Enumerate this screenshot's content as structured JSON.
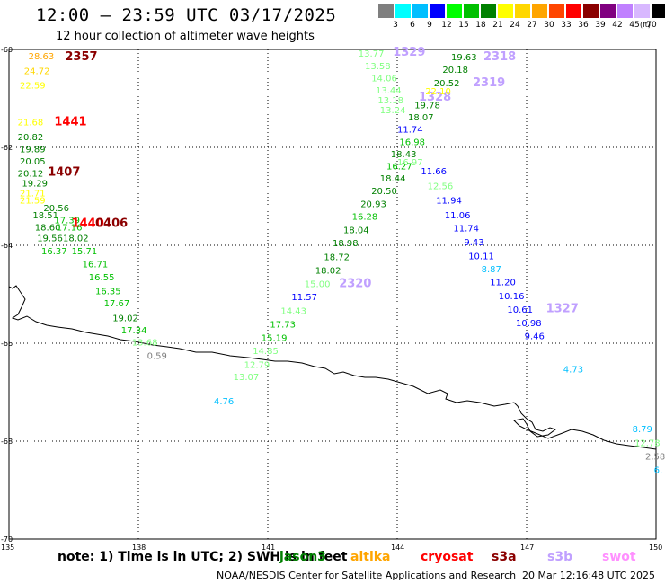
{
  "title": "12:00 — 23:59 UTC 03/17/2025",
  "subtitle": "12 hour collection of altimeter wave heights",
  "legend": {
    "unit": "(ft)",
    "ticks": [
      "3",
      "6",
      "9",
      "12",
      "15",
      "18",
      "21",
      "24",
      "27",
      "30",
      "33",
      "36",
      "39",
      "42",
      "45",
      "70"
    ],
    "colors": [
      "#7f7f7f",
      "#00ffff",
      "#00bfff",
      "#0000ff",
      "#00ff00",
      "#00c000",
      "#008000",
      "#ffff00",
      "#ffd700",
      "#ffa500",
      "#ff4500",
      "#ff0000",
      "#8b0000",
      "#800080",
      "#c080ff",
      "#d8b8ff",
      "#000000"
    ]
  },
  "axes": {
    "lat_labels": [
      "-60",
      "-62",
      "-64",
      "-66",
      "-68",
      "-70"
    ],
    "lon_labels": [
      "135",
      "138",
      "141",
      "144",
      "147",
      "150"
    ]
  },
  "note": "note: 1) Time is in UTC; 2) SWH is in feet",
  "satellites": [
    {
      "name": "jason3",
      "color": "#008000"
    },
    {
      "name": "altika",
      "color": "#ffa500"
    },
    {
      "name": "cryosat",
      "color": "#ff0000"
    },
    {
      "name": "s3a",
      "color": "#8b0000"
    },
    {
      "name": "s3b",
      "color": "#c0a0ff"
    },
    {
      "name": "swot",
      "color": "#ff90ff"
    }
  ],
  "credit": "NOAA/NESDIS Center for Satellite Applications and Research",
  "timestamp": "20 Mar 12:16:48 UTC 2025",
  "labels": [
    {
      "t": "28.63",
      "lon": 135.45,
      "lat": -60.2,
      "c": "#ffa500"
    },
    {
      "t": "2357",
      "lon": 136.3,
      "lat": -60.22,
      "c": "#8b0000",
      "big": true
    },
    {
      "t": "24.72",
      "lon": 135.35,
      "lat": -60.5,
      "c": "#ffd700"
    },
    {
      "t": "22.59",
      "lon": 135.25,
      "lat": -60.8,
      "c": "#ffff00"
    },
    {
      "t": "21.68",
      "lon": 135.2,
      "lat": -61.55,
      "c": "#ffff00"
    },
    {
      "t": "1441",
      "lon": 136.05,
      "lat": -61.55,
      "c": "#ff0000",
      "big": true
    },
    {
      "t": "20.82",
      "lon": 135.2,
      "lat": -61.85,
      "c": "#008000"
    },
    {
      "t": "19.89",
      "lon": 135.25,
      "lat": -62.1,
      "c": "#008000"
    },
    {
      "t": "20.05",
      "lon": 135.25,
      "lat": -62.35,
      "c": "#008000"
    },
    {
      "t": "20.12",
      "lon": 135.2,
      "lat": -62.6,
      "c": "#008000"
    },
    {
      "t": "1407",
      "lon": 135.9,
      "lat": -62.58,
      "c": "#8b0000",
      "big": true
    },
    {
      "t": "19.29",
      "lon": 135.3,
      "lat": -62.8,
      "c": "#008000"
    },
    {
      "t": "21.71",
      "lon": 135.25,
      "lat": -63.0,
      "c": "#ffff00"
    },
    {
      "t": "21.59",
      "lon": 135.25,
      "lat": -63.15,
      "c": "#ffff00"
    },
    {
      "t": "20.56",
      "lon": 135.8,
      "lat": -63.3,
      "c": "#008000"
    },
    {
      "t": "18.51",
      "lon": 135.55,
      "lat": -63.45,
      "c": "#008000"
    },
    {
      "t": "17.39",
      "lon": 136.05,
      "lat": -63.55,
      "c": "#00c000"
    },
    {
      "t": "18.60",
      "lon": 135.6,
      "lat": -63.7,
      "c": "#008000"
    },
    {
      "t": "17.16",
      "lon": 136.1,
      "lat": -63.7,
      "c": "#00c000"
    },
    {
      "t": "1440",
      "lon": 136.45,
      "lat": -63.62,
      "c": "#ff0000",
      "big": true
    },
    {
      "t": "0406",
      "lon": 137.0,
      "lat": -63.62,
      "c": "#8b0000",
      "big": true
    },
    {
      "t": "19.56",
      "lon": 135.65,
      "lat": -63.92,
      "c": "#008000"
    },
    {
      "t": "18.02",
      "lon": 136.25,
      "lat": -63.92,
      "c": "#008000"
    },
    {
      "t": "16.37",
      "lon": 135.75,
      "lat": -64.18,
      "c": "#00c000"
    },
    {
      "t": "15.71",
      "lon": 136.45,
      "lat": -64.18,
      "c": "#00c000"
    },
    {
      "t": "16.71",
      "lon": 136.7,
      "lat": -64.45,
      "c": "#00c000"
    },
    {
      "t": "16.55",
      "lon": 136.85,
      "lat": -64.72,
      "c": "#00c000"
    },
    {
      "t": "16.35",
      "lon": 137.0,
      "lat": -65.0,
      "c": "#00c000"
    },
    {
      "t": "17.67",
      "lon": 137.2,
      "lat": -65.25,
      "c": "#00c000"
    },
    {
      "t": "19.02",
      "lon": 137.4,
      "lat": -65.55,
      "c": "#008000"
    },
    {
      "t": "17.34",
      "lon": 137.6,
      "lat": -65.8,
      "c": "#00c000"
    },
    {
      "t": "13.68",
      "lon": 137.85,
      "lat": -66.05,
      "c": "#80ff80"
    },
    {
      "t": "0.59",
      "lon": 138.2,
      "lat": -66.32,
      "c": "#7f7f7f"
    },
    {
      "t": "4.76",
      "lon": 139.75,
      "lat": -67.25,
      "c": "#00bfff"
    },
    {
      "t": "13.77",
      "lon": 143.1,
      "lat": -60.15,
      "c": "#80ff80"
    },
    {
      "t": "1329",
      "lon": 143.9,
      "lat": -60.13,
      "c": "#c0a0ff",
      "big": true
    },
    {
      "t": "13.58",
      "lon": 143.25,
      "lat": -60.4,
      "c": "#80ff80"
    },
    {
      "t": "14.06",
      "lon": 143.4,
      "lat": -60.65,
      "c": "#80ff80"
    },
    {
      "t": "13.44",
      "lon": 143.5,
      "lat": -60.9,
      "c": "#80ff80"
    },
    {
      "t": "13.18",
      "lon": 143.55,
      "lat": -61.1,
      "c": "#80ff80"
    },
    {
      "t": "13.24",
      "lon": 143.6,
      "lat": -61.3,
      "c": "#80ff80"
    },
    {
      "t": "1328",
      "lon": 144.5,
      "lat": -61.05,
      "c": "#c0a0ff",
      "big": true
    },
    {
      "t": "2319",
      "lon": 145.75,
      "lat": -60.75,
      "c": "#c0a0ff",
      "big": true
    },
    {
      "t": "2318",
      "lon": 146.0,
      "lat": -60.22,
      "c": "#c0a0ff",
      "big": true
    },
    {
      "t": "19.63",
      "lon": 145.25,
      "lat": -60.22,
      "c": "#008000"
    },
    {
      "t": "20.18",
      "lon": 145.05,
      "lat": -60.48,
      "c": "#008000"
    },
    {
      "t": "20.52",
      "lon": 144.85,
      "lat": -60.75,
      "c": "#008000"
    },
    {
      "t": "22.10",
      "lon": 144.65,
      "lat": -60.92,
      "c": "#ffff00"
    },
    {
      "t": "19.78",
      "lon": 144.4,
      "lat": -61.2,
      "c": "#008000"
    },
    {
      "t": "18.07",
      "lon": 144.25,
      "lat": -61.45,
      "c": "#008000"
    },
    {
      "t": "11.74",
      "lon": 144.0,
      "lat": -61.7,
      "c": "#0000ff"
    },
    {
      "t": "16.98",
      "lon": 144.05,
      "lat": -61.95,
      "c": "#00c000"
    },
    {
      "t": "18.43",
      "lon": 143.85,
      "lat": -62.2,
      "c": "#008000"
    },
    {
      "t": "16.97",
      "lon": 144.0,
      "lat": -62.37,
      "c": "#80ff80"
    },
    {
      "t": "16.27",
      "lon": 143.75,
      "lat": -62.45,
      "c": "#00c000"
    },
    {
      "t": "11.66",
      "lon": 144.55,
      "lat": -62.55,
      "c": "#0000ff"
    },
    {
      "t": "18.44",
      "lon": 143.6,
      "lat": -62.7,
      "c": "#008000"
    },
    {
      "t": "12.56",
      "lon": 144.7,
      "lat": -62.85,
      "c": "#80ff80"
    },
    {
      "t": "20.50",
      "lon": 143.4,
      "lat": -62.95,
      "c": "#008000"
    },
    {
      "t": "11.94",
      "lon": 144.9,
      "lat": -63.15,
      "c": "#0000ff"
    },
    {
      "t": "20.93",
      "lon": 143.15,
      "lat": -63.22,
      "c": "#008000"
    },
    {
      "t": "11.06",
      "lon": 145.1,
      "lat": -63.45,
      "c": "#0000ff"
    },
    {
      "t": "16.28",
      "lon": 142.95,
      "lat": -63.48,
      "c": "#00c000"
    },
    {
      "t": "11.74",
      "lon": 145.3,
      "lat": -63.72,
      "c": "#0000ff"
    },
    {
      "t": "18.04",
      "lon": 142.75,
      "lat": -63.75,
      "c": "#008000"
    },
    {
      "t": "9.43",
      "lon": 145.55,
      "lat": -64.0,
      "c": "#0000ff"
    },
    {
      "t": "18.98",
      "lon": 142.5,
      "lat": -64.02,
      "c": "#008000"
    },
    {
      "t": "10.11",
      "lon": 145.65,
      "lat": -64.28,
      "c": "#0000ff"
    },
    {
      "t": "18.72",
      "lon": 142.3,
      "lat": -64.3,
      "c": "#008000"
    },
    {
      "t": "8.87",
      "lon": 145.95,
      "lat": -64.55,
      "c": "#00bfff"
    },
    {
      "t": "18.02",
      "lon": 142.1,
      "lat": -64.58,
      "c": "#008000"
    },
    {
      "t": "11.20",
      "lon": 146.15,
      "lat": -64.82,
      "c": "#0000ff"
    },
    {
      "t": "15.00",
      "lon": 141.85,
      "lat": -64.85,
      "c": "#80ff80"
    },
    {
      "t": "2320",
      "lon": 142.65,
      "lat": -64.85,
      "c": "#c0a0ff",
      "big": true
    },
    {
      "t": "10.16",
      "lon": 146.35,
      "lat": -65.1,
      "c": "#0000ff"
    },
    {
      "t": "11.57",
      "lon": 141.55,
      "lat": -65.12,
      "c": "#0000ff"
    },
    {
      "t": "10.61",
      "lon": 146.55,
      "lat": -65.38,
      "c": "#0000ff"
    },
    {
      "t": "1327",
      "lon": 147.45,
      "lat": -65.37,
      "c": "#c0a0ff",
      "big": true
    },
    {
      "t": "14.43",
      "lon": 141.3,
      "lat": -65.4,
      "c": "#80ff80"
    },
    {
      "t": "10.98",
      "lon": 146.75,
      "lat": -65.65,
      "c": "#0000ff"
    },
    {
      "t": "17.73",
      "lon": 141.05,
      "lat": -65.68,
      "c": "#00c000"
    },
    {
      "t": "9.46",
      "lon": 146.95,
      "lat": -65.92,
      "c": "#0000ff"
    },
    {
      "t": "15.19",
      "lon": 140.85,
      "lat": -65.95,
      "c": "#00c000"
    },
    {
      "t": "14.85",
      "lon": 140.65,
      "lat": -66.22,
      "c": "#80ff80"
    },
    {
      "t": "12.79",
      "lon": 140.45,
      "lat": -66.5,
      "c": "#80ff80"
    },
    {
      "t": "13.07",
      "lon": 140.2,
      "lat": -66.75,
      "c": "#80ff80"
    },
    {
      "t": "4.73",
      "lon": 147.85,
      "lat": -66.6,
      "c": "#00bfff"
    },
    {
      "t": "8.79",
      "lon": 149.45,
      "lat": -67.82,
      "c": "#00bfff"
    },
    {
      "t": "12.78",
      "lon": 149.5,
      "lat": -68.1,
      "c": "#80ff80"
    },
    {
      "t": "2.58",
      "lon": 149.75,
      "lat": -68.38,
      "c": "#7f7f7f"
    },
    {
      "t": "6.",
      "lon": 149.95,
      "lat": -68.65,
      "c": "#00bfff"
    }
  ]
}
